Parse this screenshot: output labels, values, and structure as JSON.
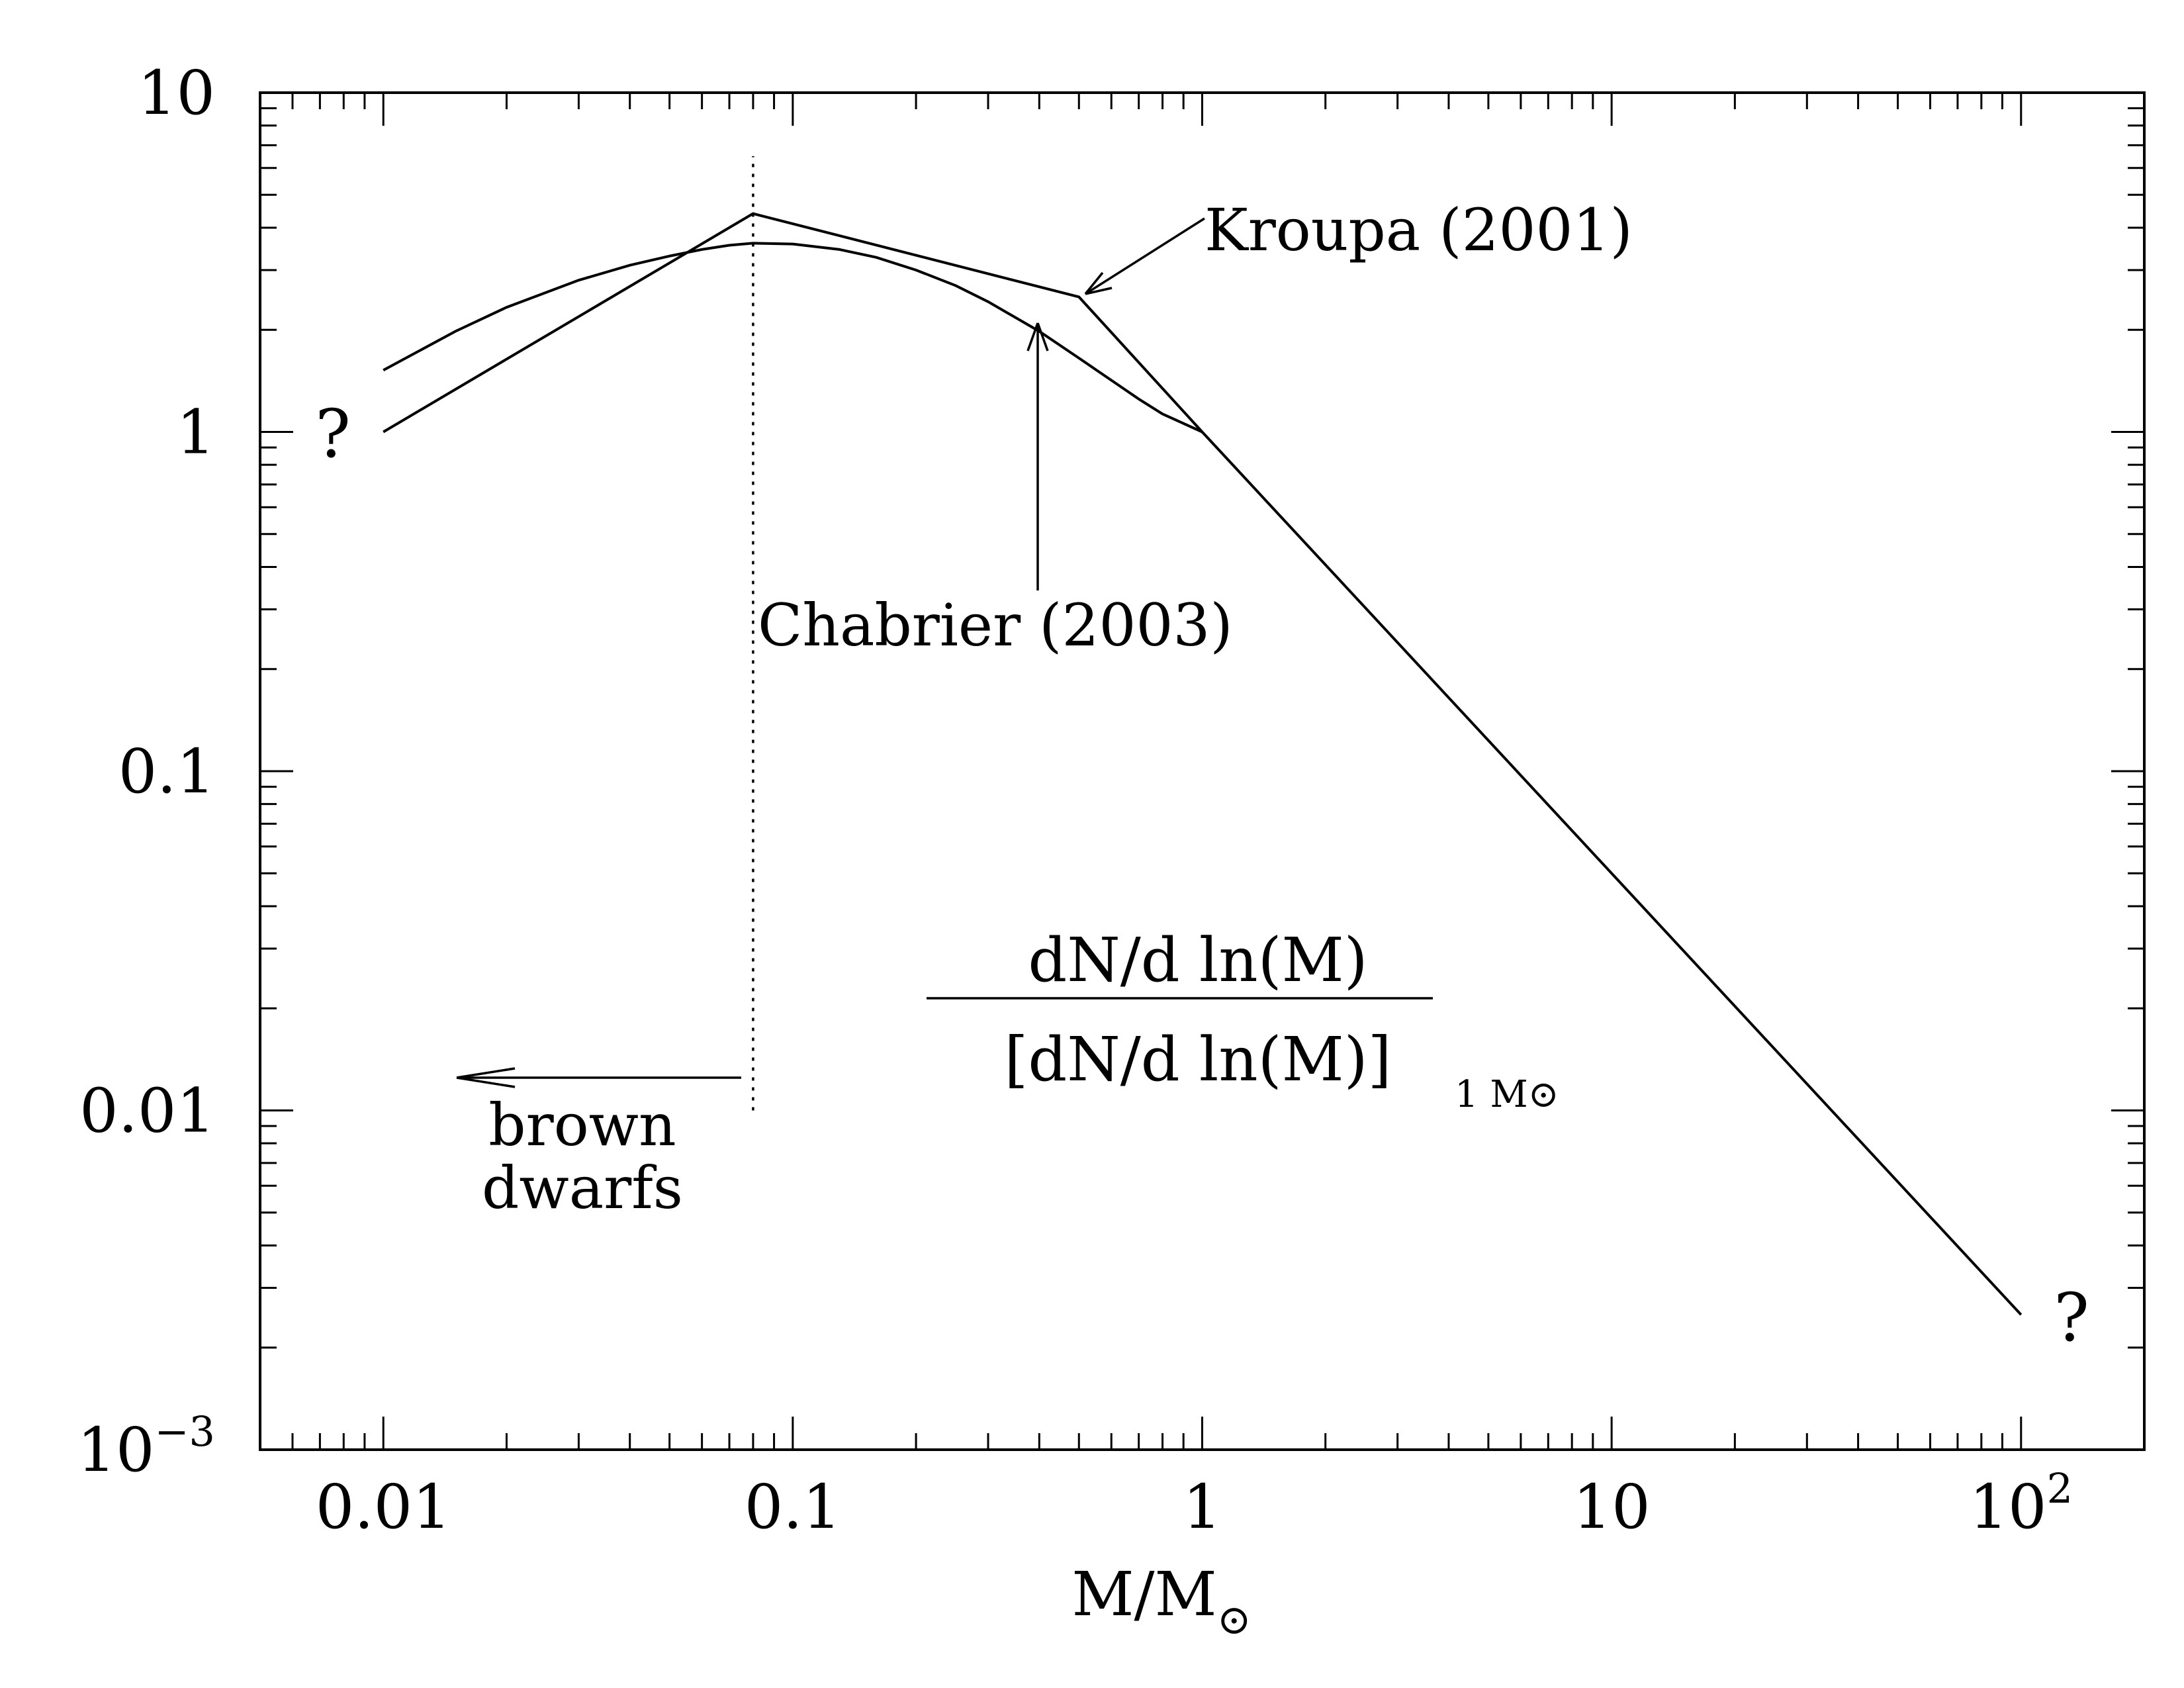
{
  "chart_data": {
    "type": "line",
    "xscale": "log",
    "yscale": "log",
    "xlim": [
      0.005,
      200
    ],
    "ylim": [
      0.001,
      10
    ],
    "xlabel": {
      "base": "M/M",
      "sub": "⊙"
    },
    "x_ticks": [
      {
        "value": 0.01,
        "label": "0.01"
      },
      {
        "value": 0.1,
        "label": "0.1"
      },
      {
        "value": 1,
        "label": "1"
      },
      {
        "value": 10,
        "label": "10"
      },
      {
        "value": 100,
        "label": "10",
        "sup": "2"
      }
    ],
    "y_ticks": [
      {
        "value": 0.001,
        "label": "10",
        "sup": "−3"
      },
      {
        "value": 0.01,
        "label": "0.01"
      },
      {
        "value": 0.1,
        "label": "0.1"
      },
      {
        "value": 1,
        "label": "1"
      },
      {
        "value": 10,
        "label": "10"
      }
    ],
    "series": [
      {
        "name": "Kroupa (2001)",
        "style": "solid",
        "x": [
          0.01,
          0.08,
          0.5,
          1,
          100
        ],
        "y": [
          1.0,
          4.4,
          2.5,
          1.0,
          0.0025
        ]
      },
      {
        "name": "Chabrier (2003)",
        "style": "solid",
        "x": [
          0.01,
          0.015,
          0.02,
          0.03,
          0.04,
          0.05,
          0.06,
          0.07,
          0.08,
          0.1,
          0.13,
          0.16,
          0.2,
          0.25,
          0.3,
          0.4,
          0.5,
          0.6,
          0.7,
          0.8,
          1.0
        ],
        "y": [
          1.52,
          1.98,
          2.33,
          2.8,
          3.1,
          3.3,
          3.45,
          3.55,
          3.6,
          3.58,
          3.45,
          3.27,
          3.0,
          2.7,
          2.42,
          1.98,
          1.65,
          1.42,
          1.25,
          1.13,
          1.0
        ]
      }
    ],
    "vline": {
      "x": 0.08,
      "y_from": 0.01,
      "y_to": 6.5,
      "style": "dotted"
    },
    "annotations": {
      "kroupa_label": "Kroupa (2001)",
      "chabrier_label": "Chabrier (2003)",
      "brown_line1": "brown",
      "brown_line2": "dwarfs",
      "question_left": "?",
      "question_right": "?",
      "formula_numerator": "dN/d ln(M)",
      "formula_denominator": "[dN/d ln(M)]",
      "formula_sub": "1 M⊙"
    }
  }
}
